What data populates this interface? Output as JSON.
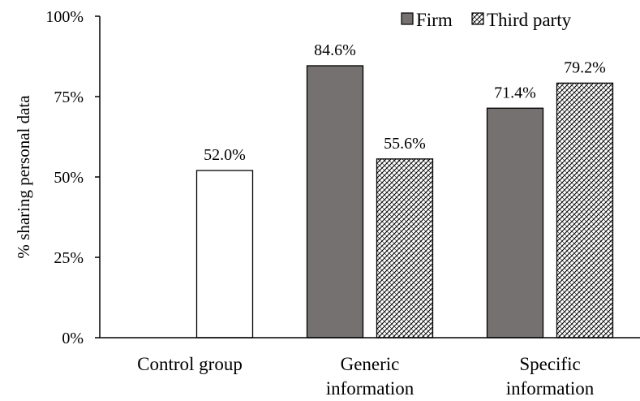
{
  "chart_data": {
    "type": "bar",
    "ylabel": "% sharing personal data",
    "ylim": [
      0,
      100
    ],
    "yticks": [
      {
        "value": 0,
        "label": "0%"
      },
      {
        "value": 25,
        "label": "25%"
      },
      {
        "value": 50,
        "label": "50%"
      },
      {
        "value": 75,
        "label": "75%"
      },
      {
        "value": 100,
        "label": "100%"
      }
    ],
    "grid": false,
    "legend_position": "top-right",
    "categories": [
      {
        "lines": [
          "Control group"
        ]
      },
      {
        "lines": [
          "Generic",
          "information"
        ]
      },
      {
        "lines": [
          "Specific",
          "information"
        ]
      }
    ],
    "series": [
      {
        "name": "Firm",
        "style": "solid",
        "color": "#767171",
        "values": [
          null,
          84.6,
          71.4
        ],
        "labels": [
          null,
          "84.6%",
          "71.4%"
        ]
      },
      {
        "name": "Third party",
        "style": "hatched",
        "color": "#ffffff",
        "values": [
          52.0,
          55.6,
          79.2
        ],
        "labels": [
          "52.0%",
          "55.6%",
          "79.2%"
        ]
      }
    ],
    "colors": {
      "firm_fill": "#767171",
      "control_fill": "#ffffff",
      "hatch": "#000000",
      "axis": "#000000"
    }
  }
}
